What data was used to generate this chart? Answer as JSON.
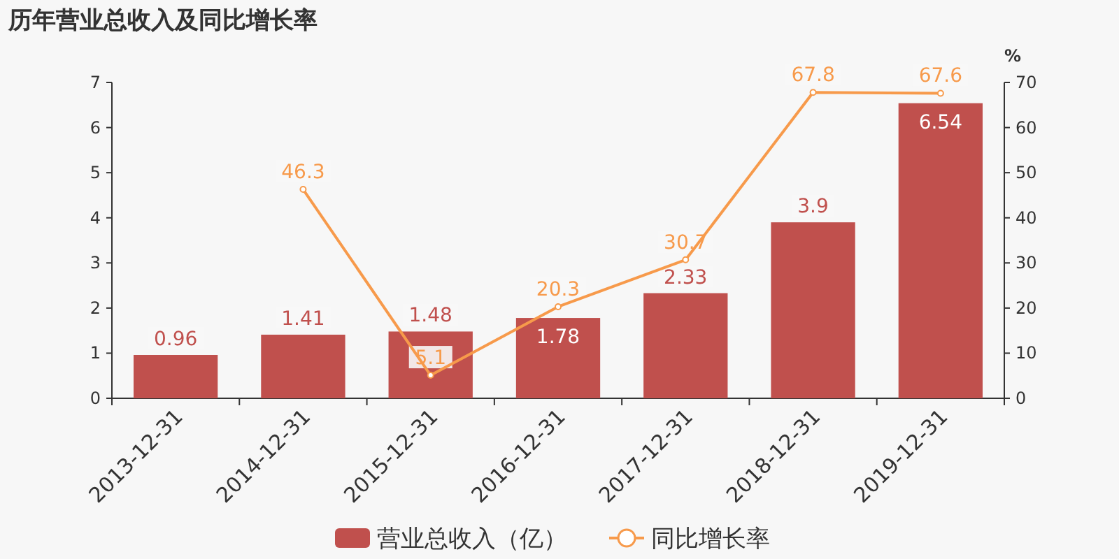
{
  "chart_data": {
    "type": "bar",
    "title": "历年营业总收入及同比增长率",
    "y2label": "%",
    "categories": [
      "2013-12-31",
      "2014-12-31",
      "2015-12-31",
      "2016-12-31",
      "2017-12-31",
      "2018-12-31",
      "2019-12-31"
    ],
    "series": [
      {
        "name": "营业总收入（亿）",
        "type": "bar",
        "color": "#c0504d",
        "values": [
          0.96,
          1.41,
          1.48,
          1.78,
          2.33,
          3.9,
          6.54
        ]
      },
      {
        "name": "同比增长率",
        "type": "line",
        "axis": "y2",
        "color": "#f79a4b",
        "marker": "circle",
        "values": [
          null,
          46.3,
          5.1,
          20.3,
          30.7,
          67.8,
          67.6
        ]
      }
    ],
    "ylim": [
      0,
      7
    ],
    "yticks": [
      0,
      1,
      2,
      3,
      4,
      5,
      6,
      7
    ],
    "y2lim": [
      0,
      70
    ],
    "y2ticks": [
      0,
      10,
      20,
      30,
      40,
      50,
      60,
      70
    ],
    "data_labels": true,
    "legend": "bottom",
    "grid": false
  }
}
